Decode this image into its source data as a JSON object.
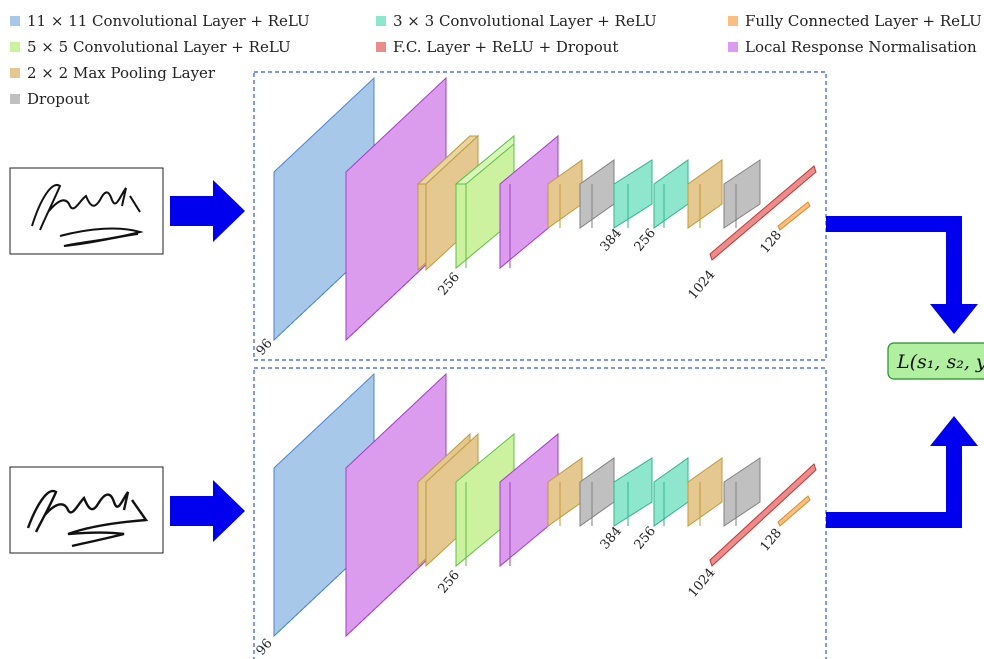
{
  "legend": [
    {
      "label": "11 × 11 Convolutional Layer + ReLU",
      "color": "#a8c8ea"
    },
    {
      "label": "3 × 3 Convolutional Layer + ReLU",
      "color": "#8ee6cc"
    },
    {
      "label": "Fully Connected Layer + ReLU",
      "color": "#f8be82"
    },
    {
      "label": "5 × 5 Convolutional Layer + ReLU",
      "color": "#ccf2a0"
    },
    {
      "label": "F.C. Layer + ReLU + Dropout",
      "color": "#e88c8c"
    },
    {
      "label": "Local Response Normalisation",
      "color": "#dc9cee"
    },
    {
      "label": "2 × 2 Max Pooling Layer",
      "color": "#e4c890"
    },
    {
      "label": "Dropout",
      "color": "#c0c0c0"
    }
  ],
  "network_top": {
    "labels": {
      "conv1": "96",
      "conv2": "256",
      "conv3": "384",
      "conv4": "256",
      "fc1": "1024",
      "fc2": "128"
    }
  },
  "network_bottom": {
    "labels": {
      "conv1": "96",
      "conv2": "256",
      "conv3": "384",
      "conv4": "256",
      "fc1": "1024",
      "fc2": "128"
    }
  },
  "loss": {
    "text": "L(s₁, s₂, y"
  },
  "colors": {
    "arrow": "#0000ee",
    "box_border": "#3355ee",
    "loss_fill": "#b0f0a0",
    "loss_border": "#2a8a2a"
  }
}
